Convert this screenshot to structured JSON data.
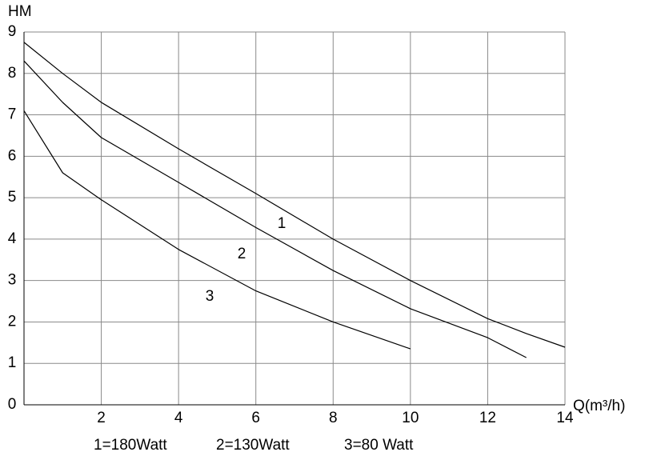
{
  "chart_data": {
    "type": "line",
    "y_label": "HM",
    "x_label": "Q(m³/h)",
    "x": [
      0,
      1,
      2,
      4,
      6,
      8,
      10,
      12,
      13,
      14
    ],
    "series": [
      {
        "name": "1",
        "color": "#000000",
        "values": [
          8.75,
          8.0,
          7.3,
          6.18,
          5.1,
          4.0,
          3.0,
          2.08,
          1.72,
          1.39
        ]
      },
      {
        "name": "2",
        "color": "#000000",
        "values": [
          8.3,
          7.3,
          6.45,
          5.37,
          4.28,
          3.24,
          2.32,
          1.62,
          1.14,
          null
        ]
      },
      {
        "name": "3",
        "color": "#000000",
        "values": [
          7.1,
          5.6,
          4.95,
          3.75,
          2.75,
          2.0,
          1.35,
          null,
          null,
          null
        ]
      }
    ],
    "notes": [
      "1=180Watt",
      "2=130Watt",
      "3=80 Watt"
    ],
    "xlim": [
      0,
      14
    ],
    "ylim": [
      0,
      9
    ],
    "xticks": [
      2,
      4,
      6,
      8,
      10,
      12,
      14
    ],
    "yticks": [
      0,
      1,
      2,
      3,
      4,
      5,
      6,
      7,
      8,
      9
    ],
    "grid": true
  }
}
